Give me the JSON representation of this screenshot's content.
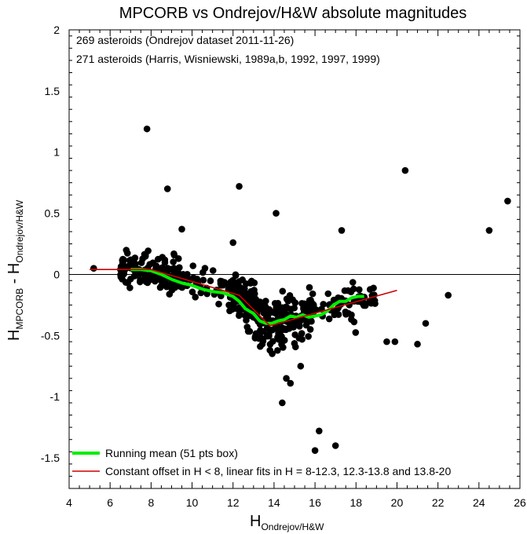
{
  "chart_data": {
    "type": "scatter",
    "title": "MPCORB vs Ondrejov/H&W absolute magnitudes",
    "annotations": [
      "269 asteroids (Ondrejov dataset 2011-11-26)",
      "271 asteroids (Harris, Wisniewski, 1989a,b, 1992, 1997, 1999)"
    ],
    "xlabel": {
      "main": "H",
      "sub": "Ondrejov/H&W"
    },
    "ylabel": {
      "main": "H",
      "sub": "MPCORB",
      "dash": " - ",
      "main2": "H",
      "sub2": "Ondrejov/H&W"
    },
    "xlim": [
      4,
      26
    ],
    "ylim": [
      -1.75,
      2
    ],
    "xticks": [
      4,
      6,
      8,
      10,
      12,
      14,
      16,
      18,
      20,
      22,
      24,
      26
    ],
    "xtick_labels": [
      "4",
      "6",
      "8",
      "10",
      "12",
      "14",
      "16",
      "18",
      "20",
      "22",
      "24",
      "26"
    ],
    "yticks": [
      -1.5,
      -1,
      -0.5,
      0,
      0.5,
      1,
      1.5,
      2
    ],
    "ytick_labels": [
      "-1.5",
      "-1",
      "-0.5",
      "0",
      "0.5",
      "1",
      "1.5",
      "2"
    ],
    "zero_line": 0,
    "grid": false,
    "legend_position": "bottom-left",
    "colors": {
      "points": "#000000",
      "running_mean": "#00ee00",
      "fit": "#cc0000",
      "axes": "#000000"
    },
    "series": [
      {
        "name": "Running mean (51 pts box)",
        "kind": "line",
        "x": [
          7.0,
          7.5,
          8.0,
          8.5,
          9.0,
          9.5,
          10.0,
          10.5,
          11.0,
          11.5,
          12.0,
          12.3,
          12.6,
          13.0,
          13.3,
          13.6,
          13.9,
          14.2,
          14.5,
          14.8,
          15.1,
          15.4,
          15.7,
          16.0,
          16.3,
          16.6,
          16.9,
          17.2,
          17.5,
          17.8,
          18.1,
          18.4
        ],
        "y": [
          0.04,
          0.04,
          0.03,
          0.0,
          -0.04,
          -0.07,
          -0.09,
          -0.12,
          -0.14,
          -0.15,
          -0.18,
          -0.22,
          -0.28,
          -0.32,
          -0.38,
          -0.4,
          -0.4,
          -0.38,
          -0.37,
          -0.34,
          -0.35,
          -0.33,
          -0.35,
          -0.34,
          -0.33,
          -0.3,
          -0.25,
          -0.22,
          -0.22,
          -0.19,
          -0.18,
          -0.18
        ]
      },
      {
        "name": "Constant offset in H < 8, linear fits in H = 8-12.3, 12.3-13.8 and 13.8-20",
        "kind": "line",
        "x": [
          5.0,
          8.0,
          12.3,
          13.8,
          20.0
        ],
        "y": [
          0.04,
          0.04,
          -0.17,
          -0.42,
          -0.13
        ]
      },
      {
        "name": "",
        "kind": "scatter",
        "x": [
          5.2,
          7.8,
          8.8,
          12.3,
          14.1,
          20.4,
          25.4,
          24.5,
          22.5,
          21.4,
          21.0,
          19.9,
          19.5,
          16.2,
          16.0,
          17.0,
          14.4,
          14.6,
          13.8,
          17.3,
          14.8,
          15.3,
          12.0,
          9.5
        ],
        "y": [
          0.05,
          1.19,
          0.7,
          0.72,
          0.5,
          0.85,
          0.6,
          0.36,
          -0.17,
          -0.4,
          -0.57,
          -0.55,
          -0.55,
          -1.28,
          -1.44,
          -1.4,
          -1.05,
          -0.85,
          -0.62,
          0.36,
          -0.89,
          -0.75,
          0.26,
          0.37
        ]
      }
    ]
  }
}
